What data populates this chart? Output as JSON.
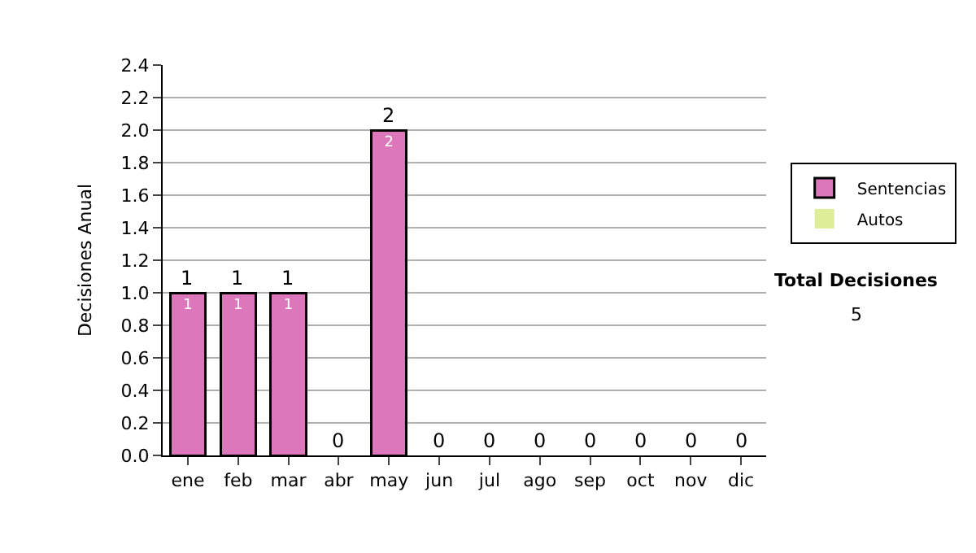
{
  "chart_data": {
    "type": "bar",
    "stacked": true,
    "ylabel": "Decisiones Anual",
    "categories": [
      "ene",
      "feb",
      "mar",
      "abr",
      "may",
      "jun",
      "jul",
      "ago",
      "sep",
      "oct",
      "nov",
      "dic"
    ],
    "series": [
      {
        "name": "Sentencias",
        "color": "#dd77bb",
        "values": [
          1,
          1,
          1,
          0,
          2,
          0,
          0,
          0,
          0,
          0,
          0,
          0
        ],
        "value_labels": [
          "1",
          "1",
          "1",
          null,
          "2",
          null,
          null,
          null,
          null,
          null,
          null,
          null
        ]
      },
      {
        "name": "Autos",
        "color": "#ddee99",
        "values": [
          0,
          0,
          0,
          0,
          0,
          0,
          0,
          0,
          0,
          0,
          0,
          0
        ]
      }
    ],
    "totals": [
      "1",
      "1",
      "1",
      "0",
      "2",
      "0",
      "0",
      "0",
      "0",
      "0",
      "0",
      "0"
    ],
    "ylim": [
      0,
      2.4
    ],
    "yticks": [
      {
        "value": 0,
        "label": "0.0"
      },
      {
        "value": 0.2,
        "label": "0.2"
      },
      {
        "value": 0.4,
        "label": "0.4"
      },
      {
        "value": 0.6,
        "label": "0.6"
      },
      {
        "value": 0.8,
        "label": "0.8"
      },
      {
        "value": 1,
        "label": "1.0"
      },
      {
        "value": 1.2,
        "label": "1.2"
      },
      {
        "value": 1.4,
        "label": "1.4"
      },
      {
        "value": 1.6,
        "label": "1.6"
      },
      {
        "value": 1.8,
        "label": "1.8"
      },
      {
        "value": 2,
        "label": "2.0"
      },
      {
        "value": 2.2,
        "label": "2.2"
      },
      {
        "value": 2.4,
        "label": "2.4"
      }
    ],
    "grid": "y",
    "legend": "right",
    "annotations": [
      "Total Decisiones",
      "5"
    ]
  }
}
